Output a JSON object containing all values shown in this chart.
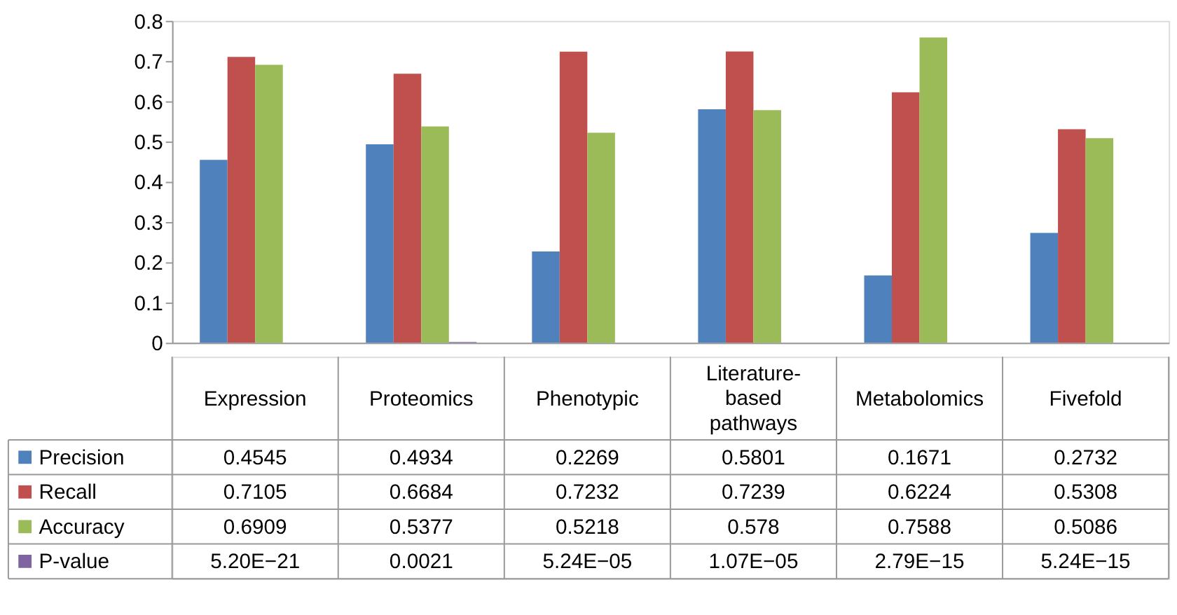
{
  "chart_data": {
    "type": "bar",
    "categories": [
      "Expression",
      "Proteomics",
      "Phenotypic",
      "Literature-based pathways",
      "Metabolomics",
      "Fivefold"
    ],
    "series": [
      {
        "name": "Precision",
        "color": "#4f81bd",
        "values": [
          0.4545,
          0.4934,
          0.2269,
          0.5801,
          0.1671,
          0.2732
        ],
        "value_labels": [
          "0.4545",
          "0.4934",
          "0.2269",
          "0.5801",
          "0.1671",
          "0.2732"
        ]
      },
      {
        "name": "Recall",
        "color": "#c0504d",
        "values": [
          0.7105,
          0.6684,
          0.7232,
          0.7239,
          0.6224,
          0.5308
        ],
        "value_labels": [
          "0.7105",
          "0.6684",
          "0.7232",
          "0.7239",
          "0.6224",
          "0.5308"
        ]
      },
      {
        "name": "Accuracy",
        "color": "#9bbb59",
        "values": [
          0.6909,
          0.5377,
          0.5218,
          0.578,
          0.7588,
          0.5086
        ],
        "value_labels": [
          "0.6909",
          "0.5377",
          "0.5218",
          "0.578",
          "0.7588",
          "0.5086"
        ]
      },
      {
        "name": "P-value",
        "color": "#8064a2",
        "values": [
          5.2e-21,
          0.0021,
          5.24e-05,
          1.07e-05,
          2.79e-15,
          5.24e-15
        ],
        "value_labels": [
          "5.20E−21",
          "0.0021",
          "5.24E−05",
          "1.07E−05",
          "2.79E−15",
          "5.24E−15"
        ]
      }
    ],
    "ylim": [
      0,
      0.8
    ],
    "yticks": [
      0,
      0.1,
      0.2,
      0.3,
      0.4,
      0.5,
      0.6,
      0.7,
      0.8
    ],
    "grid": false,
    "legend": "bottom left"
  }
}
